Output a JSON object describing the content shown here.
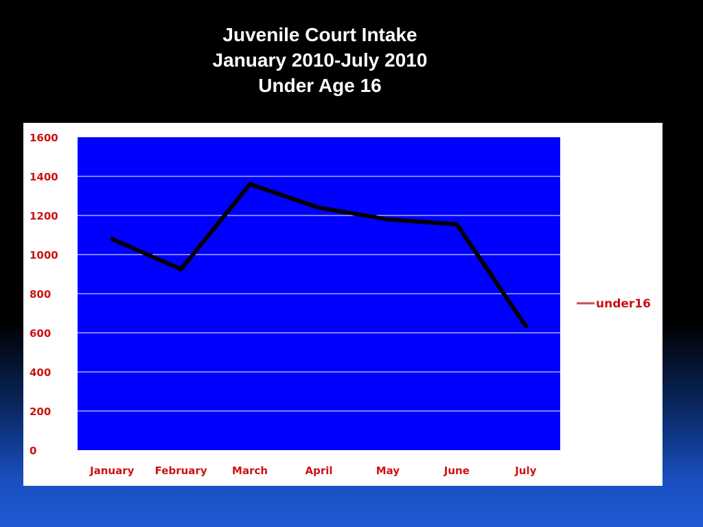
{
  "title_lines": [
    "Juvenile Court Intake",
    "January 2010-July 2010",
    "Under Age 16"
  ],
  "colors": {
    "plot_background": "#0000ff",
    "line": "#000000",
    "labels": "#cc1111",
    "legend_swatch": "#c0504d"
  },
  "chart_data": {
    "type": "line",
    "title": "Juvenile Court Intake January 2010-July 2010 Under Age 16",
    "categories": [
      "January",
      "February",
      "March",
      "April",
      "May",
      "June",
      "July"
    ],
    "series": [
      {
        "name": "under16",
        "values": [
          1080,
          925,
          1360,
          1240,
          1180,
          1155,
          635
        ]
      }
    ],
    "yticks": [
      0,
      200,
      400,
      600,
      800,
      1000,
      1200,
      1400,
      1600
    ],
    "ylim": [
      0,
      1600
    ],
    "xlabel": "",
    "ylabel": "",
    "grid": true,
    "legend": "right"
  }
}
